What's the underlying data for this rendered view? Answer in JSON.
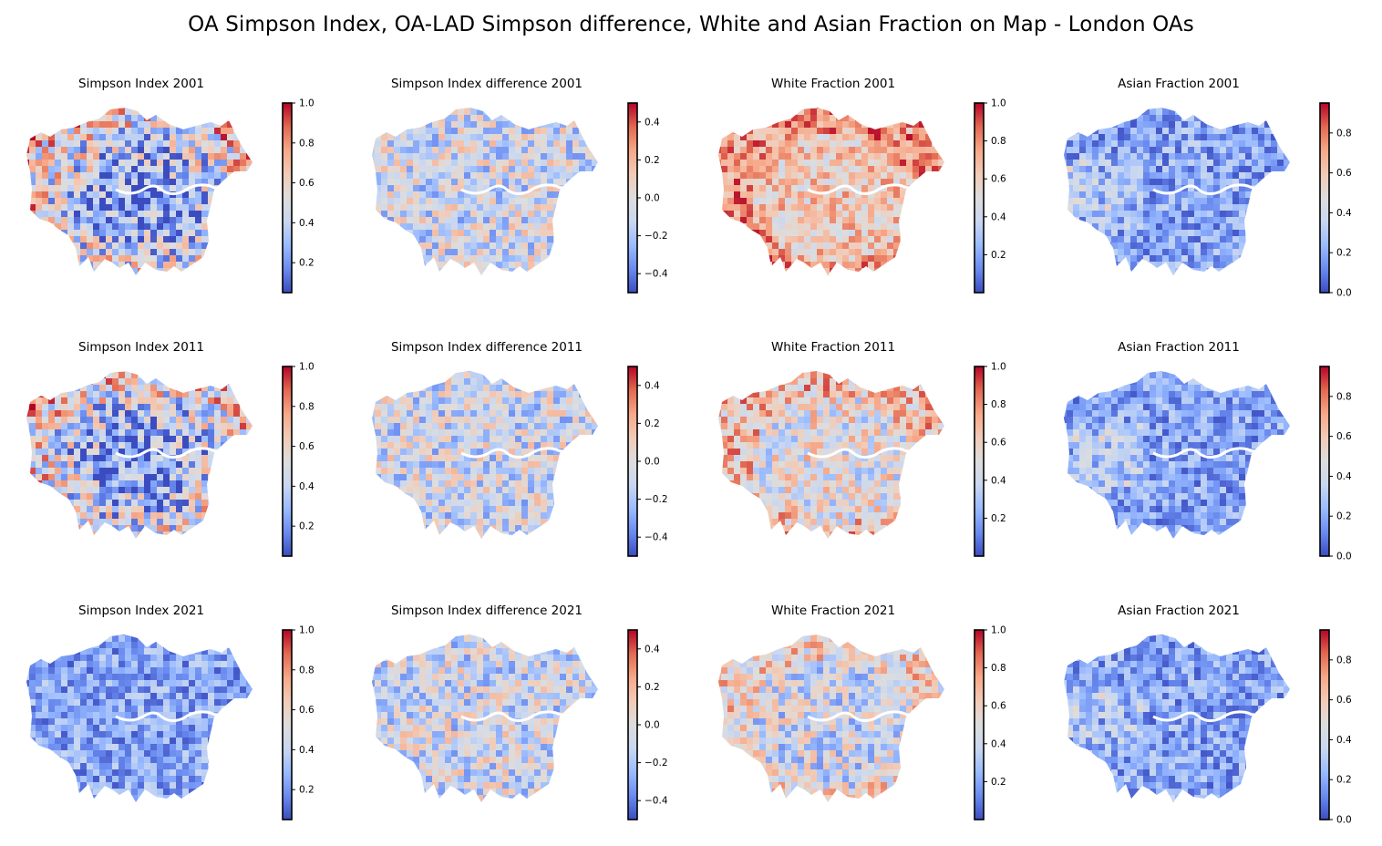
{
  "figure": {
    "title": "OA Simpson Index, OA-LAD Simpson difference, White and Asian Fraction on Map - London OAs",
    "colormap": "coolwarm",
    "colormap_stops": [
      "#3b4cc0",
      "#6a8bef",
      "#9abbff",
      "#c9d7f0",
      "#dddddd",
      "#f2cbb7",
      "#f7a889",
      "#e26952",
      "#b40426"
    ]
  },
  "panels": [
    {
      "title": "Simpson Index 2001",
      "variable": "simpson",
      "year": "2001",
      "map_tendency": "outer high, center low",
      "colorbar": {
        "min": 0.05,
        "max": 1.0,
        "ticks": [
          0.2,
          0.4,
          0.6,
          0.8,
          1.0
        ],
        "tick_labels": [
          "0.2",
          "0.4",
          "0.6",
          "0.8",
          "1.0"
        ]
      }
    },
    {
      "title": "Simpson Index difference 2001",
      "variable": "simpson_diff",
      "year": "2001",
      "map_tendency": "mixed",
      "colorbar": {
        "min": -0.5,
        "max": 0.5,
        "ticks": [
          -0.4,
          -0.2,
          0.0,
          0.2,
          0.4
        ],
        "tick_labels": [
          "−0.4",
          "−0.2",
          "0.0",
          "0.2",
          "0.4"
        ]
      }
    },
    {
      "title": "White Fraction 2001",
      "variable": "white",
      "year": "2001",
      "map_tendency": "mostly high",
      "colorbar": {
        "min": 0.0,
        "max": 1.0,
        "ticks": [
          0.2,
          0.4,
          0.6,
          0.8,
          1.0
        ],
        "tick_labels": [
          "0.2",
          "0.4",
          "0.6",
          "0.8",
          "1.0"
        ]
      }
    },
    {
      "title": "Asian Fraction 2001",
      "variable": "asian",
      "year": "2001",
      "map_tendency": "mostly low",
      "colorbar": {
        "min": 0.0,
        "max": 0.95,
        "ticks": [
          0.0,
          0.2,
          0.4,
          0.6,
          0.8
        ],
        "tick_labels": [
          "0.0",
          "0.2",
          "0.4",
          "0.6",
          "0.8"
        ]
      }
    },
    {
      "title": "Simpson Index 2011",
      "variable": "simpson",
      "year": "2011",
      "map_tendency": "outer high, center low",
      "colorbar": {
        "min": 0.05,
        "max": 1.0,
        "ticks": [
          0.2,
          0.4,
          0.6,
          0.8,
          1.0
        ],
        "tick_labels": [
          "0.2",
          "0.4",
          "0.6",
          "0.8",
          "1.0"
        ]
      }
    },
    {
      "title": "Simpson Index difference 2011",
      "variable": "simpson_diff",
      "year": "2011",
      "map_tendency": "mixed",
      "colorbar": {
        "min": -0.5,
        "max": 0.5,
        "ticks": [
          -0.4,
          -0.2,
          0.0,
          0.2,
          0.4
        ],
        "tick_labels": [
          "−0.4",
          "−0.2",
          "0.0",
          "0.2",
          "0.4"
        ]
      }
    },
    {
      "title": "White Fraction 2011",
      "variable": "white",
      "year": "2011",
      "map_tendency": "mixed high",
      "colorbar": {
        "min": 0.0,
        "max": 1.0,
        "ticks": [
          0.2,
          0.4,
          0.6,
          0.8,
          1.0
        ],
        "tick_labels": [
          "0.2",
          "0.4",
          "0.6",
          "0.8",
          "1.0"
        ]
      }
    },
    {
      "title": "Asian Fraction 2011",
      "variable": "asian",
      "year": "2011",
      "map_tendency": "mostly low",
      "colorbar": {
        "min": 0.0,
        "max": 0.95,
        "ticks": [
          0.0,
          0.2,
          0.4,
          0.6,
          0.8
        ],
        "tick_labels": [
          "0.0",
          "0.2",
          "0.4",
          "0.6",
          "0.8"
        ]
      }
    },
    {
      "title": "Simpson Index 2021",
      "variable": "simpson",
      "year": "2021",
      "map_tendency": "mostly low",
      "colorbar": {
        "min": 0.05,
        "max": 1.0,
        "ticks": [
          0.2,
          0.4,
          0.6,
          0.8,
          1.0
        ],
        "tick_labels": [
          "0.2",
          "0.4",
          "0.6",
          "0.8",
          "1.0"
        ]
      }
    },
    {
      "title": "Simpson Index difference 2021",
      "variable": "simpson_diff",
      "year": "2021",
      "map_tendency": "mixed",
      "colorbar": {
        "min": -0.5,
        "max": 0.5,
        "ticks": [
          -0.4,
          -0.2,
          0.0,
          0.2,
          0.4
        ],
        "tick_labels": [
          "−0.4",
          "−0.2",
          "0.0",
          "0.2",
          "0.4"
        ]
      }
    },
    {
      "title": "White Fraction 2021",
      "variable": "white",
      "year": "2021",
      "map_tendency": "mixed",
      "colorbar": {
        "min": 0.0,
        "max": 1.0,
        "ticks": [
          0.2,
          0.4,
          0.6,
          0.8,
          1.0
        ],
        "tick_labels": [
          "0.2",
          "0.4",
          "0.6",
          "0.8",
          "1.0"
        ]
      }
    },
    {
      "title": "Asian Fraction 2021",
      "variable": "asian",
      "year": "2021",
      "map_tendency": "mostly low",
      "colorbar": {
        "min": 0.0,
        "max": 0.95,
        "ticks": [
          0.0,
          0.2,
          0.4,
          0.6,
          0.8
        ],
        "tick_labels": [
          "0.0",
          "0.2",
          "0.4",
          "0.6",
          "0.8"
        ]
      }
    }
  ]
}
